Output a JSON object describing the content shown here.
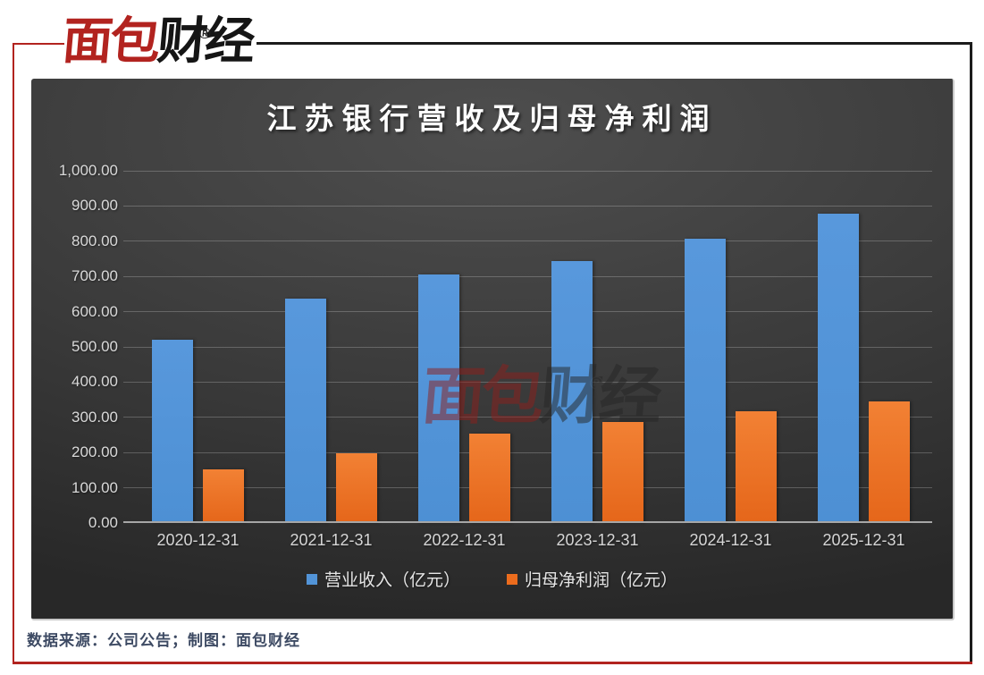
{
  "logo": {
    "text_red": "面包",
    "text_black": "财经",
    "registered": "®"
  },
  "watermark": {
    "text_red": "面包",
    "text_dark": "财经",
    "registered": "®"
  },
  "footer": {
    "source_text": "数据来源：公司公告；制图：面包财经"
  },
  "colors": {
    "frame_red": "#b2231f",
    "frame_black": "#1c1c1c",
    "panel_background": "#3b3b3b",
    "revenue_blue": "#5294d8",
    "profit_orange": "#ec6c1d",
    "axis_text": "#d9d9d9",
    "title_text": "#ffffff",
    "source_text": "#3d4a63"
  },
  "chart_data": {
    "type": "bar",
    "title": "江苏银行营收及归母净利润",
    "categories": [
      "2020-12-31",
      "2021-12-31",
      "2022-12-31",
      "2023-12-31",
      "2024-12-31",
      "2025-12-31"
    ],
    "series": [
      {
        "name": "营业收入（亿元）",
        "color": "#5294d8",
        "values": [
          520,
          638,
          706,
          743,
          808,
          878
        ]
      },
      {
        "name": "归母净利润（亿元）",
        "color": "#ec6c1d",
        "values": [
          152,
          197,
          255,
          288,
          318,
          345
        ]
      }
    ],
    "xlabel": "",
    "ylabel": "",
    "ylim": [
      0,
      1000
    ],
    "ytick_step": 100,
    "ytick_labels": [
      "0.00",
      "100.00",
      "200.00",
      "300.00",
      "400.00",
      "500.00",
      "600.00",
      "700.00",
      "800.00",
      "900.00",
      "1,000.00"
    ],
    "grid": true,
    "legend_position": "bottom"
  }
}
